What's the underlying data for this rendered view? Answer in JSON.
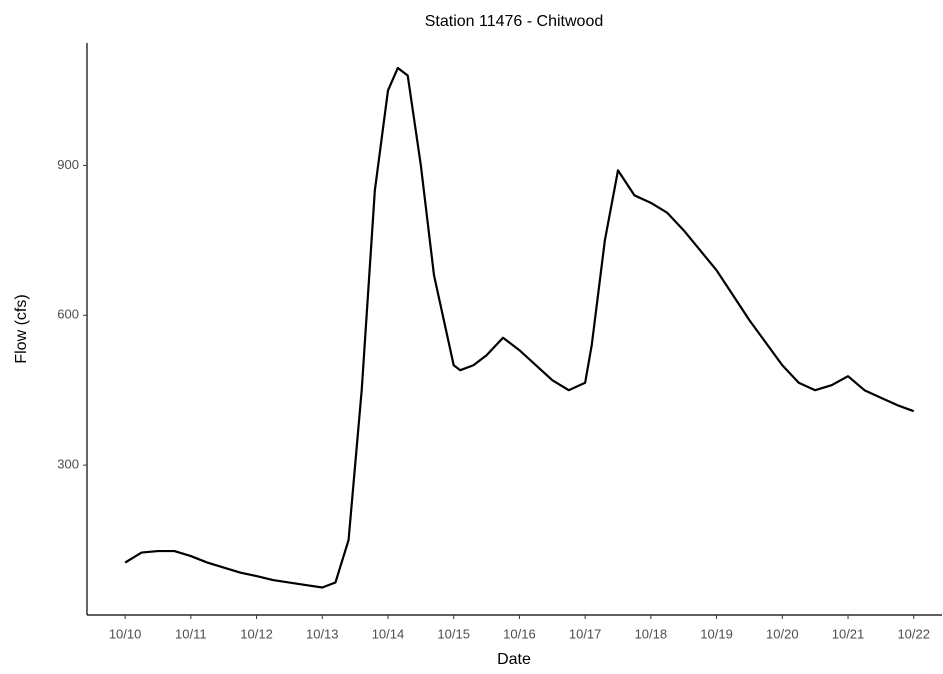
{
  "chart_data": {
    "type": "line",
    "title": "Station 11476 - Chitwood",
    "x_label": "Date",
    "y_label": "Flow (cfs)",
    "x": [
      10.0,
      10.25,
      10.5,
      10.75,
      11.0,
      11.25,
      11.5,
      11.75,
      12.0,
      12.25,
      12.5,
      12.75,
      13.0,
      13.2,
      13.4,
      13.6,
      13.8,
      14.0,
      14.15,
      14.3,
      14.5,
      14.7,
      15.0,
      15.1,
      15.3,
      15.5,
      15.75,
      16.0,
      16.25,
      16.5,
      16.75,
      17.0,
      17.1,
      17.3,
      17.5,
      17.75,
      18.0,
      18.25,
      18.5,
      18.75,
      19.0,
      19.25,
      19.5,
      19.75,
      20.0,
      20.25,
      20.5,
      20.75,
      21.0,
      21.25,
      21.5,
      21.75,
      22.0
    ],
    "series": [
      {
        "name": "Flow",
        "color": "#000000",
        "values": [
          105,
          125,
          128,
          128,
          118,
          105,
          95,
          85,
          78,
          70,
          65,
          60,
          55,
          65,
          150,
          450,
          850,
          1050,
          1095,
          1080,
          900,
          680,
          500,
          490,
          500,
          520,
          555,
          530,
          500,
          470,
          450,
          465,
          540,
          750,
          890,
          840,
          825,
          805,
          770,
          730,
          690,
          640,
          590,
          545,
          500,
          465,
          450,
          460,
          478,
          450,
          435,
          420,
          408
        ]
      }
    ],
    "xlim": [
      9.42,
      22.43
    ],
    "xticks": [
      {
        "value": 10,
        "label": "10/10"
      },
      {
        "value": 11,
        "label": "10/11"
      },
      {
        "value": 12,
        "label": "10/12"
      },
      {
        "value": 13,
        "label": "10/13"
      },
      {
        "value": 14,
        "label": "10/14"
      },
      {
        "value": 15,
        "label": "10/15"
      },
      {
        "value": 16,
        "label": "10/16"
      },
      {
        "value": 17,
        "label": "10/17"
      },
      {
        "value": 18,
        "label": "10/18"
      },
      {
        "value": 19,
        "label": "10/19"
      },
      {
        "value": 20,
        "label": "10/20"
      },
      {
        "value": 21,
        "label": "10/21"
      },
      {
        "value": 22,
        "label": "10/22"
      }
    ],
    "ylim": [
      0,
      1145
    ],
    "yticks": [
      300,
      600,
      900
    ],
    "grid": false
  }
}
